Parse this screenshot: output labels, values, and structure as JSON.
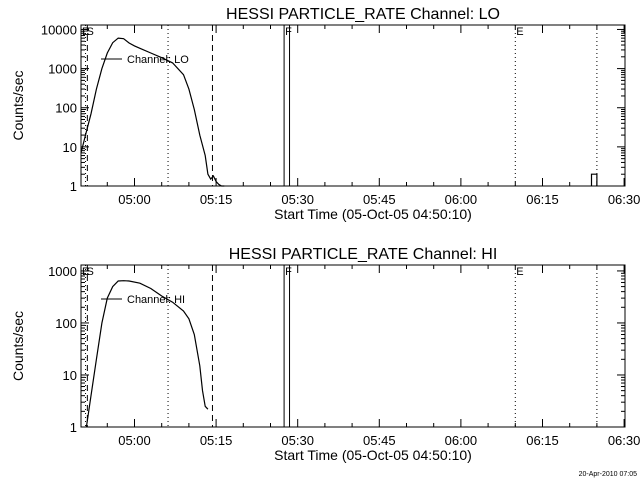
{
  "footer": {
    "timestamp": "20-Apr-2010 07:05"
  },
  "chart_data": [
    {
      "type": "line",
      "title": "HESSI PARTICLE_RATE Channel: LO",
      "xlabel": "Start Time (05-Oct-05 04:50:10)",
      "ylabel": "Counts/sec",
      "yscale": "log",
      "xlim": [
        "04:50:10",
        "06:30:10"
      ],
      "ylim": [
        1,
        13000
      ],
      "x_ticks": [
        "05:00",
        "05:15",
        "05:30",
        "05:45",
        "06:00",
        "06:15",
        "06:30"
      ],
      "y_ticks": [
        "1",
        "10",
        "100",
        "1000",
        "10000"
      ],
      "legend": "Channel: LO",
      "series": [
        {
          "name": "Channel: LO",
          "x": [
            "04:50:10",
            "04:51:00",
            "04:52:00",
            "04:53:00",
            "04:54:00",
            "04:55:00",
            "04:56:00",
            "04:57:00",
            "04:58:00",
            "04:59:00",
            "05:00:00",
            "05:01:00",
            "05:03:00",
            "05:05:00",
            "05:07:00",
            "05:09:00",
            "05:10:00",
            "05:11:00",
            "05:12:00",
            "05:13:00",
            "05:13:30",
            "05:14:00",
            "05:14:30",
            "05:15:00",
            "05:15:30",
            "05:16:00",
            "05:16:30"
          ],
          "y": [
            7,
            20,
            70,
            300,
            1000,
            2500,
            4600,
            6000,
            5800,
            4500,
            3800,
            3300,
            2500,
            1900,
            1400,
            700,
            300,
            90,
            20,
            6,
            2,
            1.5,
            1.8,
            1.3,
            1.1,
            1.0,
            1.0
          ]
        },
        {
          "name": "",
          "x": [
            "06:24:00",
            "06:24:00",
            "06:25:00",
            "06:25:00"
          ],
          "y": [
            1,
            2,
            2,
            1
          ]
        }
      ],
      "flags": [
        {
          "label": "E",
          "time": "04:50:10",
          "style": "dotted"
        },
        {
          "label": "S",
          "time": "04:51:00",
          "style": "dotted"
        },
        {
          "label": "F",
          "time": "05:27:30",
          "style": "solid"
        },
        {
          "label": "E",
          "time": "06:10:00",
          "style": "dotted"
        }
      ],
      "interval_lines": [
        {
          "time": "04:51:20",
          "style": "dashed"
        },
        {
          "time": "05:14:20",
          "style": "dashed"
        },
        {
          "time": "05:06:10",
          "style": "dotted"
        },
        {
          "time": "05:28:30",
          "style": "solid"
        },
        {
          "time": "06:25:00",
          "style": "dotted"
        }
      ]
    },
    {
      "type": "line",
      "title": "HESSI PARTICLE_RATE Channel: HI",
      "xlabel": "Start Time (05-Oct-05 04:50:10)",
      "ylabel": "Counts/sec",
      "yscale": "log",
      "xlim": [
        "04:50:10",
        "06:30:10"
      ],
      "ylim": [
        1,
        1300
      ],
      "x_ticks": [
        "05:00",
        "05:15",
        "05:30",
        "05:45",
        "06:00",
        "06:15",
        "06:30"
      ],
      "y_ticks": [
        "1",
        "10",
        "100",
        "1000"
      ],
      "legend": "Channel: HI",
      "series": [
        {
          "name": "Channel: HI",
          "x": [
            "04:51:10",
            "04:52:00",
            "04:53:00",
            "04:54:00",
            "04:55:00",
            "04:56:00",
            "04:57:00",
            "04:58:00",
            "04:59:00",
            "05:01:00",
            "05:03:00",
            "05:05:00",
            "05:07:00",
            "05:09:00",
            "05:10:00",
            "05:11:00",
            "05:12:00",
            "05:12:30",
            "05:13:00",
            "05:13:30"
          ],
          "y": [
            1,
            4,
            20,
            100,
            300,
            500,
            640,
            650,
            640,
            580,
            460,
            330,
            250,
            170,
            120,
            60,
            15,
            5,
            2.5,
            2.2
          ]
        }
      ],
      "flags": [
        {
          "label": "E",
          "time": "04:50:10",
          "style": "dotted"
        },
        {
          "label": "S",
          "time": "04:51:00",
          "style": "dotted"
        },
        {
          "label": "F",
          "time": "05:27:30",
          "style": "solid"
        },
        {
          "label": "E",
          "time": "06:10:00",
          "style": "dotted"
        }
      ],
      "interval_lines": [
        {
          "time": "04:51:20",
          "style": "dashed"
        },
        {
          "time": "05:14:20",
          "style": "dashed"
        },
        {
          "time": "05:06:10",
          "style": "dotted"
        },
        {
          "time": "05:28:30",
          "style": "solid"
        },
        {
          "time": "06:25:00",
          "style": "dotted"
        }
      ]
    }
  ]
}
